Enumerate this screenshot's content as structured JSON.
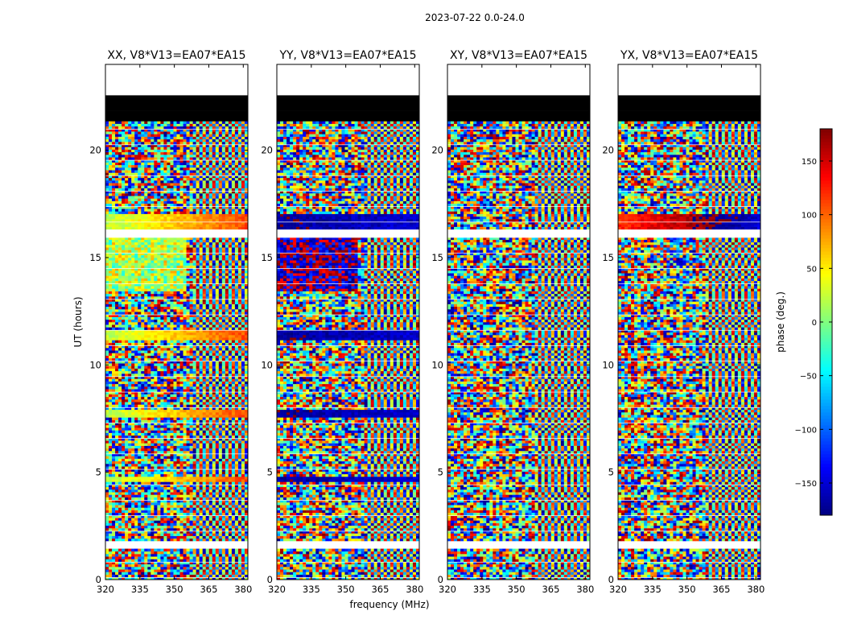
{
  "chart_data": {
    "type": "heatmap",
    "suptitle": "2023-07-22 0.0-24.0",
    "xlabel": "frequency (MHz)",
    "ylabel": "UT (hours)",
    "xlim": [
      320,
      382
    ],
    "ylim": [
      0,
      24
    ],
    "xticks": [
      "320",
      "335",
      "350",
      "365",
      "380"
    ],
    "xtick_values": [
      320,
      335,
      350,
      365,
      380
    ],
    "yticks": [
      "0",
      "5",
      "10",
      "15",
      "20"
    ],
    "ytick_values": [
      0,
      5,
      10,
      15,
      20
    ],
    "colormap": "jet",
    "colorbar": {
      "label": "phase (deg.)",
      "range": [
        -180,
        180
      ],
      "ticks": [
        "150",
        "100",
        "50",
        "0",
        "−50",
        "−100",
        "−150"
      ],
      "tick_values": [
        150,
        100,
        50,
        0,
        -50,
        -100,
        -150
      ]
    },
    "panels": [
      {
        "title": "XX, V8*V13=EA07*EA15",
        "coherent_phase": 20,
        "coherent_hours": [
          [
            16.2,
            17.0
          ],
          [
            11.2,
            11.7
          ],
          [
            7.6,
            7.9
          ],
          [
            4.5,
            4.8
          ]
        ],
        "broad_patch": [
          13.5,
          16.0
        ]
      },
      {
        "title": "YY, V8*V13=EA07*EA15",
        "coherent_phase": -170,
        "coherent_hours": [
          [
            16.2,
            17.0
          ],
          [
            11.2,
            11.7
          ],
          [
            7.6,
            7.9
          ],
          [
            4.5,
            4.8
          ]
        ],
        "broad_patch": [
          13.5,
          16.0
        ]
      },
      {
        "title": "XY, V8*V13=EA07*EA15",
        "coherent_phase": null,
        "coherent_hours": [],
        "broad_patch": null
      },
      {
        "title": "YX, V8*V13=EA07*EA15",
        "coherent_phase": 120,
        "coherent_hours": [
          [
            16.2,
            17.0
          ]
        ],
        "broad_patch": null
      }
    ],
    "flagged_hours_white": [
      [
        22.5,
        24.0
      ],
      [
        16.0,
        16.3
      ],
      [
        1.45,
        1.75
      ]
    ],
    "flagged_hours_black": [
      [
        21.3,
        22.5
      ]
    ],
    "colors": {
      "background": "#ffffff",
      "axis": "#000000"
    }
  }
}
